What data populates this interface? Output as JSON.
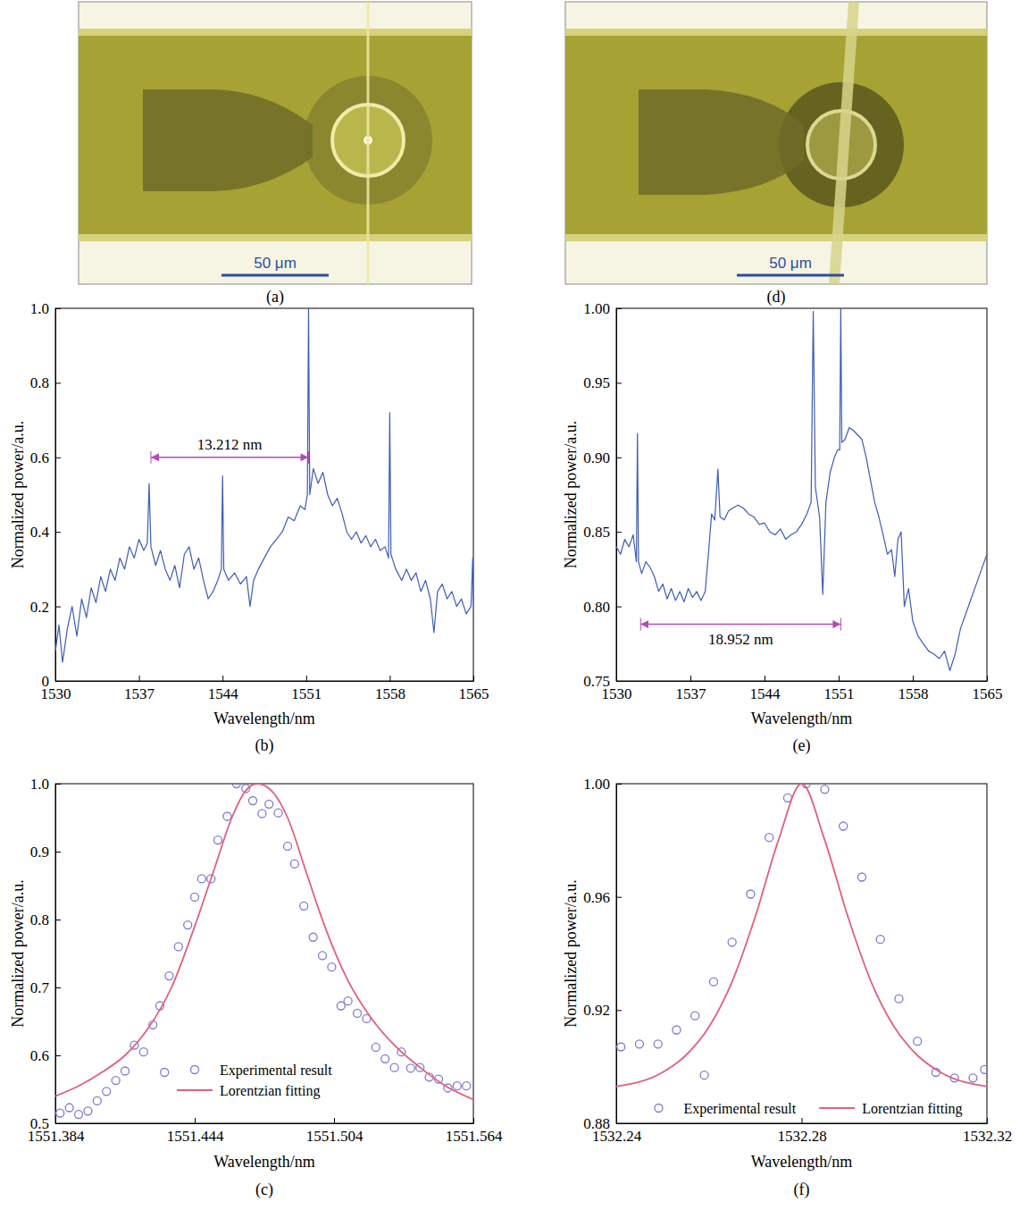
{
  "chart_data": [
    {
      "type": "image",
      "label": "(a)",
      "annotations": [
        {
          "text": "50 μm"
        }
      ]
    },
    {
      "type": "line",
      "label": "(b)",
      "x_label": "Wavelength/nm",
      "y_label": "Normalized power/a.u.",
      "color": "#3d5cb4",
      "xlim": [
        1530,
        1565
      ],
      "xticks": [
        1530,
        1537,
        1544,
        1551,
        1558,
        1565
      ],
      "ylim": [
        0,
        1
      ],
      "yticks": [
        0,
        0.2,
        0.4,
        0.6,
        0.8,
        {
          "value": 1,
          "label": "1.0"
        }
      ],
      "x": [
        1530,
        1530.3,
        1530.6,
        1531,
        1531.4,
        1531.8,
        1532.2,
        1532.6,
        1533,
        1533.4,
        1533.8,
        1534.2,
        1534.6,
        1535,
        1535.4,
        1535.8,
        1536.2,
        1536.6,
        1537,
        1537.4,
        1537.7,
        1537.85,
        1538,
        1538.4,
        1538.8,
        1539.2,
        1539.6,
        1540,
        1540.4,
        1540.8,
        1541.2,
        1541.6,
        1542,
        1542.4,
        1542.8,
        1543.2,
        1543.6,
        1543.9,
        1544,
        1544.1,
        1544.5,
        1545,
        1545.5,
        1546,
        1546.3,
        1546.6,
        1547,
        1547.5,
        1548,
        1548.5,
        1549,
        1549.5,
        1550,
        1550.5,
        1550.9,
        1551.1,
        1551.2,
        1551.3,
        1551.6,
        1552,
        1552.4,
        1552.8,
        1553.2,
        1553.6,
        1554,
        1554.4,
        1554.8,
        1555.2,
        1555.6,
        1556,
        1556.4,
        1556.8,
        1557.2,
        1557.6,
        1557.9,
        1558,
        1558.1,
        1558.5,
        1559,
        1559.4,
        1559.8,
        1560.2,
        1560.6,
        1561,
        1561.4,
        1561.7,
        1562,
        1562.4,
        1562.8,
        1563.2,
        1563.6,
        1564,
        1564.4,
        1564.8,
        1564.95,
        1565
      ],
      "values": [
        0.08,
        0.15,
        0.05,
        0.14,
        0.2,
        0.12,
        0.22,
        0.17,
        0.25,
        0.21,
        0.28,
        0.24,
        0.3,
        0.27,
        0.33,
        0.3,
        0.36,
        0.33,
        0.38,
        0.35,
        0.37,
        0.53,
        0.36,
        0.31,
        0.35,
        0.3,
        0.27,
        0.31,
        0.25,
        0.34,
        0.36,
        0.3,
        0.33,
        0.27,
        0.22,
        0.24,
        0.27,
        0.3,
        0.55,
        0.3,
        0.27,
        0.29,
        0.26,
        0.28,
        0.2,
        0.27,
        0.3,
        0.33,
        0.36,
        0.38,
        0.4,
        0.44,
        0.43,
        0.47,
        0.46,
        0.5,
        1.0,
        0.5,
        0.57,
        0.53,
        0.56,
        0.5,
        0.47,
        0.49,
        0.45,
        0.4,
        0.38,
        0.4,
        0.37,
        0.39,
        0.36,
        0.38,
        0.35,
        0.36,
        0.33,
        0.72,
        0.34,
        0.3,
        0.27,
        0.3,
        0.27,
        0.29,
        0.24,
        0.27,
        0.22,
        0.13,
        0.24,
        0.26,
        0.22,
        0.24,
        0.2,
        0.22,
        0.18,
        0.2,
        0.33,
        0.2
      ],
      "annotations": [
        {
          "text": "13.212 nm",
          "x": [
            1538,
            1551.2
          ],
          "y": 0.6
        }
      ]
    },
    {
      "type": "scatter",
      "label": "(c)",
      "x_label": "Wavelength/nm",
      "y_label": "Normalized power/a.u.",
      "legend": "lower center",
      "xlim": [
        1551.384,
        1551.564
      ],
      "xticks": [
        1551.384,
        1551.444,
        1551.504,
        1551.564
      ],
      "ylim": [
        0.5,
        1
      ],
      "yticks": [
        0.5,
        0.6,
        0.7,
        0.8,
        0.9,
        {
          "value": 1,
          "label": "1.0"
        }
      ],
      "series": [
        {
          "name": "Experimental result",
          "type": "scatter",
          "marker": "circle",
          "color": "#7d7bd2",
          "x": [
            1551.386,
            1551.39,
            1551.394,
            1551.398,
            1551.402,
            1551.406,
            1551.41,
            1551.414,
            1551.418,
            1551.422,
            1551.426,
            1551.429,
            1551.431,
            1551.433,
            1551.437,
            1551.441,
            1551.444,
            1551.447,
            1551.451,
            1551.454,
            1551.458,
            1551.462,
            1551.466,
            1551.469,
            1551.473,
            1551.476,
            1551.48,
            1551.484,
            1551.487,
            1551.491,
            1551.495,
            1551.499,
            1551.503,
            1551.507,
            1551.51,
            1551.514,
            1551.518,
            1551.522,
            1551.526,
            1551.53,
            1551.533,
            1551.537,
            1551.541,
            1551.545,
            1551.549,
            1551.553,
            1551.557,
            1551.561
          ],
          "values": [
            0.515,
            0.523,
            0.513,
            0.518,
            0.533,
            0.547,
            0.563,
            0.577,
            0.615,
            0.605,
            0.645,
            0.673,
            0.575,
            0.717,
            0.76,
            0.792,
            0.833,
            0.86,
            0.86,
            0.917,
            0.952,
            1.0,
            0.993,
            0.975,
            0.956,
            0.97,
            0.957,
            0.908,
            0.882,
            0.82,
            0.774,
            0.747,
            0.73,
            0.673,
            0.68,
            0.662,
            0.654,
            0.612,
            0.595,
            0.582,
            0.605,
            0.581,
            0.582,
            0.568,
            0.565,
            0.552,
            0.555,
            0.555
          ]
        },
        {
          "name": "Lorentzian fitting",
          "type": "line",
          "line_style": "solid",
          "color": "#e0607c",
          "x": [
            1551.384,
            1551.394,
            1551.404,
            1551.414,
            1551.424,
            1551.434,
            1551.444,
            1551.452,
            1551.46,
            1551.466,
            1551.471,
            1551.477,
            1551.484,
            1551.492,
            1551.5,
            1551.51,
            1551.52,
            1551.53,
            1551.54,
            1551.552,
            1551.564
          ],
          "values": [
            0.54,
            0.555,
            0.575,
            0.6,
            0.64,
            0.7,
            0.79,
            0.87,
            0.95,
            0.99,
            1.0,
            0.99,
            0.95,
            0.87,
            0.79,
            0.71,
            0.655,
            0.615,
            0.585,
            0.555,
            0.535
          ]
        }
      ]
    },
    {
      "type": "image",
      "label": "(d)",
      "annotations": [
        {
          "text": "50 μm"
        }
      ]
    },
    {
      "type": "line",
      "label": "(e)",
      "x_label": "Wavelength/nm",
      "y_label": "Normalized power/a.u.",
      "color": "#3d5cb4",
      "xlim": [
        1530,
        1565
      ],
      "xticks": [
        1530,
        1537,
        1544,
        1551,
        1558,
        1565
      ],
      "ylim": [
        0.75,
        1
      ],
      "yticks": [
        0.75,
        {
          "value": 0.8,
          "label": "0.80"
        },
        0.85,
        {
          "value": 0.9,
          "label": "0.90"
        },
        0.95,
        {
          "value": 1,
          "label": "1.00"
        }
      ],
      "x": [
        1530,
        1530.4,
        1530.8,
        1531.2,
        1531.6,
        1531.9,
        1532,
        1532.1,
        1532.4,
        1532.8,
        1533.2,
        1533.6,
        1534,
        1534.4,
        1534.8,
        1535.2,
        1535.6,
        1536,
        1536.4,
        1536.8,
        1537.2,
        1537.6,
        1538,
        1538.4,
        1538.7,
        1539,
        1539.3,
        1539.6,
        1539.8,
        1540.2,
        1540.6,
        1541,
        1541.5,
        1542,
        1542.5,
        1543,
        1543.5,
        1544,
        1544.5,
        1545,
        1545.5,
        1546,
        1546.5,
        1547,
        1547.5,
        1548,
        1548.4,
        1548.6,
        1548.8,
        1549.2,
        1549.5,
        1549.8,
        1550.2,
        1550.6,
        1550.9,
        1551.1,
        1551.2,
        1551.3,
        1551.6,
        1552,
        1552.4,
        1552.8,
        1553.2,
        1553.6,
        1554,
        1554.4,
        1554.8,
        1555.2,
        1555.6,
        1556,
        1556.3,
        1556.6,
        1556.9,
        1557.2,
        1557.6,
        1558,
        1558.5,
        1559,
        1559.5,
        1560,
        1560.5,
        1561,
        1561.5,
        1562,
        1562.5,
        1563,
        1563.5,
        1564,
        1564.5,
        1565
      ],
      "values": [
        0.84,
        0.835,
        0.845,
        0.84,
        0.848,
        0.83,
        0.916,
        0.83,
        0.822,
        0.83,
        0.826,
        0.82,
        0.81,
        0.815,
        0.805,
        0.812,
        0.804,
        0.81,
        0.803,
        0.812,
        0.806,
        0.81,
        0.804,
        0.81,
        0.835,
        0.862,
        0.858,
        0.892,
        0.86,
        0.858,
        0.864,
        0.866,
        0.868,
        0.866,
        0.862,
        0.86,
        0.855,
        0.856,
        0.85,
        0.848,
        0.852,
        0.845,
        0.848,
        0.85,
        0.855,
        0.862,
        0.87,
        0.998,
        0.88,
        0.86,
        0.808,
        0.87,
        0.89,
        0.9,
        0.905,
        0.905,
        1.0,
        0.91,
        0.912,
        0.92,
        0.918,
        0.915,
        0.912,
        0.9,
        0.885,
        0.87,
        0.86,
        0.848,
        0.835,
        0.838,
        0.82,
        0.845,
        0.85,
        0.8,
        0.812,
        0.79,
        0.78,
        0.775,
        0.77,
        0.768,
        0.765,
        0.77,
        0.757,
        0.768,
        0.785,
        0.795,
        0.805,
        0.815,
        0.825,
        0.835
      ],
      "annotations": [
        {
          "text": "18.952 nm",
          "x": [
            1532.3,
            1551.2
          ],
          "y": 0.788
        }
      ]
    },
    {
      "type": "scatter",
      "label": "(f)",
      "x_label": "Wavelength/nm",
      "y_label": "Normalized power/a.u.",
      "legend": "lower center",
      "xlim": [
        1532.24,
        1532.32
      ],
      "xticks": [
        1532.24,
        1532.28,
        1532.32
      ],
      "ylim": [
        0.88,
        1
      ],
      "yticks": [
        0.88,
        0.92,
        0.96,
        {
          "value": 1,
          "label": "1.00"
        }
      ],
      "series": [
        {
          "name": "Experimental result",
          "type": "scatter",
          "marker": "circle",
          "color": "#7d7bd2",
          "x": [
            1532.241,
            1532.245,
            1532.249,
            1532.253,
            1532.257,
            1532.259,
            1532.261,
            1532.265,
            1532.269,
            1532.273,
            1532.277,
            1532.281,
            1532.285,
            1532.289,
            1532.293,
            1532.297,
            1532.301,
            1532.305,
            1532.309,
            1532.313,
            1532.317,
            1532.3195
          ],
          "values": [
            0.907,
            0.908,
            0.908,
            0.913,
            0.918,
            0.897,
            0.93,
            0.944,
            0.961,
            0.981,
            0.995,
            1.0,
            0.998,
            0.985,
            0.967,
            0.945,
            0.924,
            0.909,
            0.898,
            0.896,
            0.896,
            0.899
          ]
        },
        {
          "name": "Lorentzian fitting",
          "type": "line",
          "line_style": "solid",
          "color": "#e0607c",
          "x": [
            1532.24,
            1532.25,
            1532.255,
            1532.26,
            1532.265,
            1532.27,
            1532.275,
            1532.28,
            1532.285,
            1532.29,
            1532.295,
            1532.3,
            1532.305,
            1532.31,
            1532.32
          ],
          "values": [
            0.893,
            0.898,
            0.904,
            0.914,
            0.93,
            0.953,
            0.98,
            1.0,
            0.98,
            0.953,
            0.93,
            0.914,
            0.904,
            0.898,
            0.893
          ]
        }
      ]
    }
  ]
}
